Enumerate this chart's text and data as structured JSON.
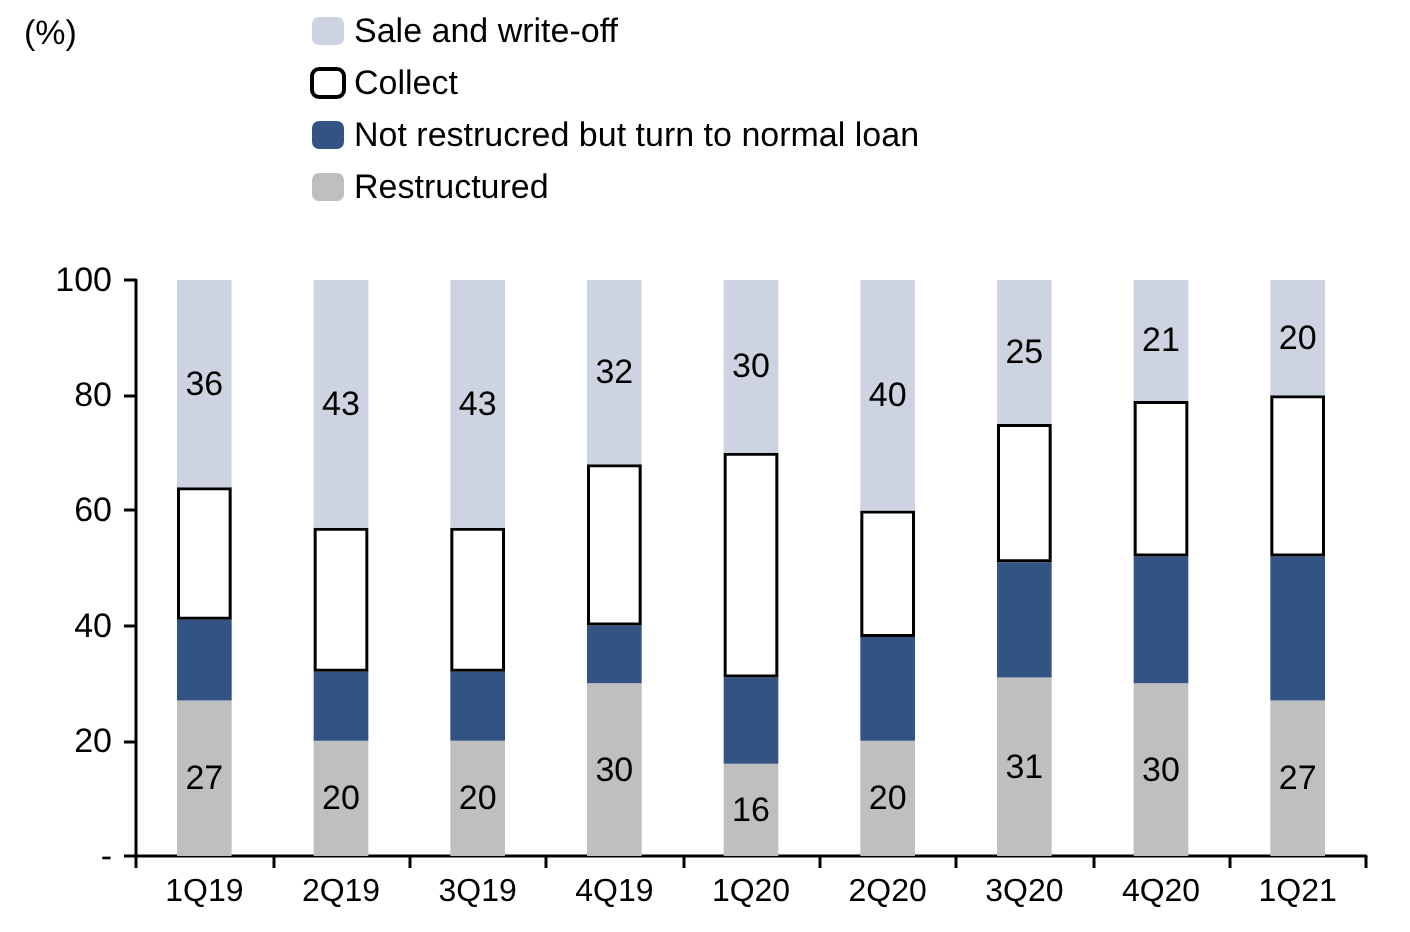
{
  "chart_data": {
    "type": "bar",
    "stacked": true,
    "annotations": [
      "(%)"
    ],
    "legend": "top",
    "grid": false,
    "categories": [
      "1Q19",
      "2Q19",
      "3Q19",
      "4Q19",
      "1Q20",
      "2Q20",
      "3Q20",
      "4Q20",
      "1Q21"
    ],
    "ylim": [
      0,
      100
    ],
    "yticks": [
      {
        "value": 0,
        "label": "-"
      },
      20,
      40,
      60,
      80,
      100
    ],
    "series": [
      {
        "name": "Restructured",
        "color": "#bfbfbf",
        "values": [
          27,
          20,
          20,
          30,
          16,
          20,
          31,
          30,
          27
        ],
        "value_labels": [
          "27",
          "20",
          "20",
          "30",
          "16",
          "20",
          "31",
          "30",
          "27"
        ]
      },
      {
        "name": "Not restrucred but turn to normal loan",
        "color": "#335482",
        "values": [
          14,
          12,
          12,
          10,
          15,
          18,
          20,
          22,
          25
        ]
      },
      {
        "name": "Collect",
        "color": "#ffffff",
        "values": [
          23,
          25,
          25,
          28,
          39,
          22,
          24,
          27,
          28
        ]
      },
      {
        "name": "Sale and write-off",
        "color": "#cdd3e0",
        "values": [
          36,
          43,
          43,
          32,
          30,
          40,
          25,
          21,
          20
        ],
        "value_labels": [
          "36",
          "43",
          "43",
          "32",
          "30",
          "40",
          "25",
          "21",
          "20"
        ]
      }
    ]
  }
}
